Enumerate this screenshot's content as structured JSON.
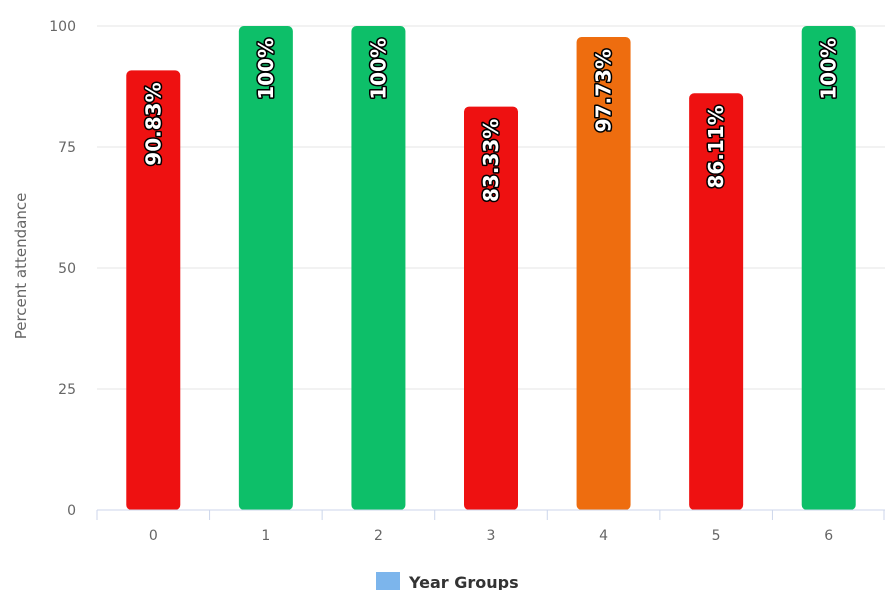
{
  "chart_data": {
    "type": "bar",
    "categories": [
      "0",
      "1",
      "2",
      "3",
      "4",
      "5",
      "6"
    ],
    "values": [
      90.83,
      100,
      100,
      83.33,
      97.73,
      86.11,
      100
    ],
    "data_labels": [
      "90.83%",
      "100%",
      "100%",
      "83.33%",
      "97.73%",
      "86.11%",
      "100%"
    ],
    "bar_colors": [
      "#ee1111",
      "#0dbf69",
      "#0dbf69",
      "#ee1111",
      "#ee6d0f",
      "#ee1111",
      "#0dbf69"
    ],
    "ylabel": "Percent attendance",
    "xlabel": "",
    "ylim": [
      0,
      100
    ],
    "yticks": [
      0,
      25,
      50,
      75,
      100
    ],
    "grid": true,
    "legend": {
      "placement": "bottom-center",
      "entries": [
        {
          "label": "Year Groups",
          "color": "#7cb5ec"
        }
      ]
    }
  }
}
